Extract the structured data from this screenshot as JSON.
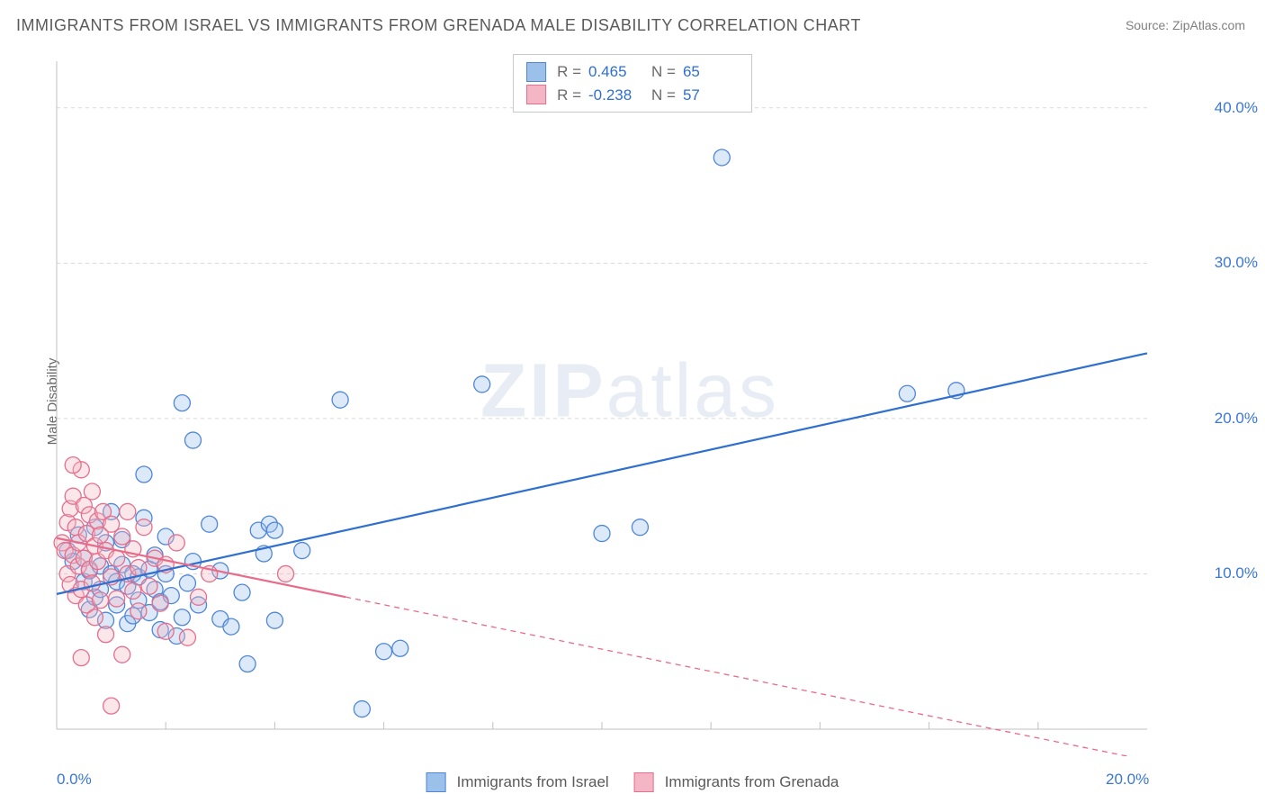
{
  "title": "IMMIGRANTS FROM ISRAEL VS IMMIGRANTS FROM GRENADA MALE DISABILITY CORRELATION CHART",
  "source": "Source: ZipAtlas.com",
  "ylabel": "Male Disability",
  "watermark": {
    "bold": "ZIP",
    "rest": "atlas"
  },
  "chart": {
    "type": "scatter",
    "xlim": [
      0,
      20
    ],
    "ylim": [
      0,
      43
    ],
    "x_ticks": [
      0,
      20
    ],
    "x_tick_labels": [
      "0.0%",
      "20.0%"
    ],
    "x_minor_ticks": [
      2,
      4,
      6,
      8,
      10,
      12,
      14,
      16,
      18
    ],
    "y_ticks": [
      10,
      20,
      30,
      40
    ],
    "y_tick_labels": [
      "10.0%",
      "20.0%",
      "30.0%",
      "40.0%"
    ],
    "grid_color": "#d7d7d7",
    "axis_color": "#c2c2c2",
    "background_color": "#ffffff",
    "marker_radius": 9,
    "marker_stroke_width": 1.3,
    "marker_fill_opacity": 0.35,
    "line_width": 2.2,
    "dash_pattern": "6 5"
  },
  "series": [
    {
      "id": "israel",
      "label": "Immigrants from Israel",
      "fill": "#9bc0ea",
      "stroke": "#4f86d8",
      "line_color": "#2f6fd0",
      "r": "0.465",
      "n": "65",
      "trend": {
        "x1": 0,
        "y1": 8.7,
        "x2": 20,
        "y2": 24.2,
        "solid_until_x": 20
      },
      "points": [
        [
          0.2,
          11.5
        ],
        [
          0.3,
          10.8
        ],
        [
          0.4,
          12.5
        ],
        [
          0.5,
          9.5
        ],
        [
          0.5,
          11.0
        ],
        [
          0.6,
          7.7
        ],
        [
          0.6,
          10.2
        ],
        [
          0.7,
          13.0
        ],
        [
          0.7,
          8.5
        ],
        [
          0.8,
          10.5
        ],
        [
          0.8,
          9.0
        ],
        [
          0.9,
          12.0
        ],
        [
          0.9,
          7.0
        ],
        [
          1.0,
          10.0
        ],
        [
          1.0,
          14.0
        ],
        [
          1.1,
          9.5
        ],
        [
          1.1,
          8.0
        ],
        [
          1.2,
          10.6
        ],
        [
          1.2,
          12.2
        ],
        [
          1.3,
          9.2
        ],
        [
          1.3,
          6.8
        ],
        [
          1.4,
          10.0
        ],
        [
          1.4,
          7.3
        ],
        [
          1.5,
          8.3
        ],
        [
          1.5,
          9.8
        ],
        [
          1.6,
          16.4
        ],
        [
          1.6,
          13.6
        ],
        [
          1.7,
          10.3
        ],
        [
          1.7,
          7.5
        ],
        [
          1.8,
          9.0
        ],
        [
          1.8,
          11.2
        ],
        [
          1.9,
          8.2
        ],
        [
          1.9,
          6.4
        ],
        [
          2.0,
          12.4
        ],
        [
          2.0,
          10.0
        ],
        [
          2.1,
          8.6
        ],
        [
          2.2,
          6.0
        ],
        [
          2.3,
          21.0
        ],
        [
          2.3,
          7.2
        ],
        [
          2.4,
          9.4
        ],
        [
          2.5,
          10.8
        ],
        [
          2.5,
          18.6
        ],
        [
          2.6,
          8.0
        ],
        [
          2.8,
          13.2
        ],
        [
          3.0,
          10.2
        ],
        [
          3.0,
          7.1
        ],
        [
          3.2,
          6.6
        ],
        [
          3.4,
          8.8
        ],
        [
          3.5,
          4.2
        ],
        [
          3.7,
          12.8
        ],
        [
          3.8,
          11.3
        ],
        [
          3.9,
          13.2
        ],
        [
          4.0,
          7.0
        ],
        [
          4.0,
          12.8
        ],
        [
          4.5,
          11.5
        ],
        [
          5.2,
          21.2
        ],
        [
          5.6,
          1.3
        ],
        [
          6.0,
          5.0
        ],
        [
          6.3,
          5.2
        ],
        [
          7.8,
          22.2
        ],
        [
          10.0,
          12.6
        ],
        [
          10.7,
          13.0
        ],
        [
          12.2,
          36.8
        ],
        [
          15.6,
          21.6
        ],
        [
          16.5,
          21.8
        ]
      ]
    },
    {
      "id": "grenada",
      "label": "Immigrants from Grenada",
      "fill": "#f4b6c4",
      "stroke": "#e56f8e",
      "line_color": "#e86b8a",
      "r": "-0.238",
      "n": "57",
      "trend": {
        "x1": 0,
        "y1": 12.3,
        "x2": 20,
        "y2": -2.0,
        "solid_until_x": 5.3
      },
      "points": [
        [
          0.1,
          12.0
        ],
        [
          0.15,
          11.5
        ],
        [
          0.2,
          13.3
        ],
        [
          0.2,
          10.0
        ],
        [
          0.25,
          14.2
        ],
        [
          0.25,
          9.3
        ],
        [
          0.3,
          11.2
        ],
        [
          0.3,
          15.0
        ],
        [
          0.35,
          13.0
        ],
        [
          0.35,
          8.6
        ],
        [
          0.4,
          10.5
        ],
        [
          0.4,
          12.0
        ],
        [
          0.45,
          9.0
        ],
        [
          0.45,
          16.7
        ],
        [
          0.5,
          14.4
        ],
        [
          0.5,
          11.0
        ],
        [
          0.55,
          12.6
        ],
        [
          0.55,
          8.0
        ],
        [
          0.6,
          13.8
        ],
        [
          0.6,
          10.3
        ],
        [
          0.65,
          15.3
        ],
        [
          0.65,
          9.4
        ],
        [
          0.7,
          11.8
        ],
        [
          0.7,
          7.2
        ],
        [
          0.75,
          13.4
        ],
        [
          0.75,
          10.8
        ],
        [
          0.8,
          12.5
        ],
        [
          0.8,
          8.3
        ],
        [
          0.85,
          14.0
        ],
        [
          0.9,
          11.5
        ],
        [
          0.9,
          6.1
        ],
        [
          1.0,
          13.2
        ],
        [
          1.0,
          9.8
        ],
        [
          1.1,
          11.0
        ],
        [
          1.1,
          8.4
        ],
        [
          1.2,
          12.4
        ],
        [
          1.2,
          4.8
        ],
        [
          1.3,
          10.0
        ],
        [
          1.3,
          14.0
        ],
        [
          1.4,
          8.9
        ],
        [
          1.4,
          11.6
        ],
        [
          1.5,
          7.6
        ],
        [
          1.5,
          10.4
        ],
        [
          1.6,
          13.0
        ],
        [
          1.7,
          9.2
        ],
        [
          1.8,
          11.0
        ],
        [
          1.9,
          8.1
        ],
        [
          2.0,
          6.3
        ],
        [
          2.0,
          10.6
        ],
        [
          2.2,
          12.0
        ],
        [
          2.4,
          5.9
        ],
        [
          2.6,
          8.5
        ],
        [
          2.8,
          10.0
        ],
        [
          0.45,
          4.6
        ],
        [
          1.0,
          1.5
        ],
        [
          0.3,
          17.0
        ],
        [
          4.2,
          10.0
        ]
      ]
    }
  ],
  "stats_box": {
    "r_label": "R  =",
    "n_label": "N  =",
    "value_color": "#2f6fd0"
  },
  "colors": {
    "title": "#5a5a5a",
    "source": "#808080",
    "ytick": "#3a77d4",
    "xtick": "#3a77d4"
  }
}
